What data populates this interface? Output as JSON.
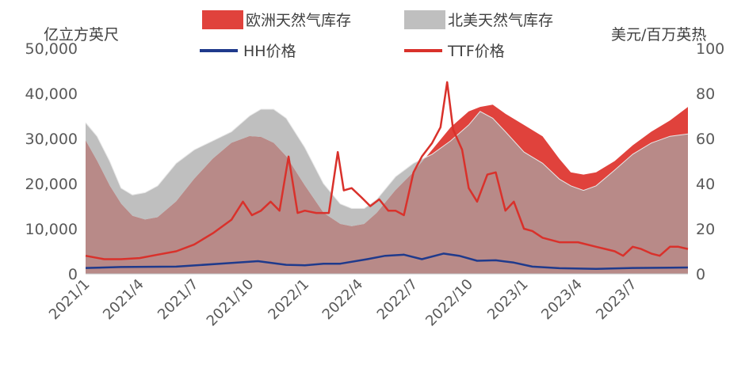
{
  "chart_data": {
    "type": "area",
    "y_left_label": "亿立方英尺",
    "y_right_label": "美元/百万英热",
    "y_left_ticks": [
      "0",
      "10,000",
      "20,000",
      "30,000",
      "40,000",
      "50,000"
    ],
    "y_right_ticks": [
      "0",
      "20",
      "40",
      "60",
      "80",
      "100"
    ],
    "ylim_left": [
      0,
      50000
    ],
    "ylim_right": [
      0,
      100
    ],
    "xlim": [
      "2021-01-01",
      "2023-10-01"
    ],
    "x_ticks": [
      "2021/1",
      "2021/4",
      "2021/7",
      "2021/10",
      "2022/1",
      "2022/4",
      "2022/7",
      "2022/10",
      "2023/1",
      "2023/4",
      "2023/7"
    ],
    "legend_position": "top",
    "grid": false,
    "colors": {
      "eu_storage": "#e0423c",
      "us_storage": "#bfbfbf",
      "overlap": "#b88a88",
      "hh": "#1f3a8c",
      "ttf": "#d9312b"
    },
    "series": [
      {
        "name": "欧洲天然气库存",
        "type": "area",
        "axis": "left",
        "x": [
          "2021-01-01",
          "2021-01-20",
          "2021-02-10",
          "2021-03-01",
          "2021-03-20",
          "2021-04-10",
          "2021-05-01",
          "2021-06-01",
          "2021-07-01",
          "2021-08-01",
          "2021-09-01",
          "2021-10-01",
          "2021-10-20",
          "2021-11-10",
          "2021-12-01",
          "2022-01-01",
          "2022-02-01",
          "2022-03-01",
          "2022-03-20",
          "2022-04-10",
          "2022-05-01",
          "2022-06-01",
          "2022-07-01",
          "2022-08-01",
          "2022-09-01",
          "2022-10-01",
          "2022-10-20",
          "2022-11-10",
          "2022-12-01",
          "2023-01-01",
          "2023-02-01",
          "2023-03-01",
          "2023-03-20",
          "2023-04-10",
          "2023-05-01",
          "2023-06-01",
          "2023-07-01",
          "2023-08-01",
          "2023-09-01",
          "2023-10-01"
        ],
        "values": [
          29500,
          25000,
          19500,
          15500,
          12800,
          12000,
          12500,
          16000,
          21000,
          25500,
          29000,
          30500,
          30300,
          29000,
          26000,
          19500,
          13500,
          11000,
          10500,
          11000,
          13500,
          18500,
          22500,
          27500,
          32500,
          36000,
          37000,
          37500,
          35500,
          33000,
          30500,
          25500,
          22500,
          22000,
          22500,
          25000,
          28500,
          31500,
          34000,
          37000
        ]
      },
      {
        "name": "北美天然气库存",
        "type": "area",
        "axis": "left",
        "x": [
          "2021-01-01",
          "2021-01-20",
          "2021-02-10",
          "2021-03-01",
          "2021-03-20",
          "2021-04-10",
          "2021-05-01",
          "2021-06-01",
          "2021-07-01",
          "2021-08-01",
          "2021-09-01",
          "2021-10-01",
          "2021-10-20",
          "2021-11-10",
          "2021-12-01",
          "2022-01-01",
          "2022-02-01",
          "2022-03-01",
          "2022-03-20",
          "2022-04-10",
          "2022-05-01",
          "2022-06-01",
          "2022-07-01",
          "2022-08-01",
          "2022-09-01",
          "2022-10-01",
          "2022-10-20",
          "2022-11-10",
          "2022-12-01",
          "2023-01-01",
          "2023-02-01",
          "2023-03-01",
          "2023-03-20",
          "2023-04-10",
          "2023-05-01",
          "2023-06-01",
          "2023-07-01",
          "2023-08-01",
          "2023-09-01",
          "2023-10-01"
        ],
        "values": [
          33500,
          30500,
          25000,
          19000,
          17500,
          18000,
          19500,
          24500,
          27500,
          29500,
          31500,
          35000,
          36500,
          36500,
          34500,
          28000,
          20000,
          15500,
          14500,
          14500,
          16500,
          21500,
          24500,
          26500,
          29500,
          33000,
          36000,
          34500,
          31500,
          27000,
          24500,
          21000,
          19500,
          18500,
          19500,
          23000,
          26500,
          29000,
          30500,
          31000
        ]
      },
      {
        "name": "HH价格",
        "type": "line",
        "axis": "right",
        "x": [
          "2021-01-01",
          "2021-03-01",
          "2021-06-01",
          "2021-09-01",
          "2021-10-15",
          "2021-12-01",
          "2022-01-01",
          "2022-02-01",
          "2022-03-01",
          "2022-04-15",
          "2022-05-15",
          "2022-06-15",
          "2022-07-15",
          "2022-08-20",
          "2022-09-15",
          "2022-10-15",
          "2022-11-15",
          "2022-12-15",
          "2023-01-15",
          "2023-03-01",
          "2023-05-01",
          "2023-07-01",
          "2023-09-01",
          "2023-10-01"
        ],
        "values": [
          2.6,
          3.0,
          3.2,
          4.8,
          5.6,
          4.0,
          3.8,
          4.5,
          4.5,
          6.5,
          8.0,
          8.5,
          6.5,
          9.0,
          8.0,
          5.8,
          6.0,
          5.0,
          3.2,
          2.5,
          2.2,
          2.6,
          2.7,
          2.8
        ]
      },
      {
        "name": "TTF价格",
        "type": "line",
        "axis": "right",
        "x": [
          "2021-01-01",
          "2021-02-01",
          "2021-03-01",
          "2021-04-01",
          "2021-05-01",
          "2021-06-01",
          "2021-07-01",
          "2021-08-01",
          "2021-09-01",
          "2021-09-20",
          "2021-10-05",
          "2021-10-20",
          "2021-11-05",
          "2021-11-20",
          "2021-12-05",
          "2021-12-20",
          "2022-01-01",
          "2022-01-20",
          "2022-02-10",
          "2022-02-25",
          "2022-03-07",
          "2022-03-20",
          "2022-04-05",
          "2022-04-20",
          "2022-05-05",
          "2022-05-20",
          "2022-06-01",
          "2022-06-15",
          "2022-07-01",
          "2022-07-15",
          "2022-08-01",
          "2022-08-15",
          "2022-08-26",
          "2022-09-05",
          "2022-09-20",
          "2022-10-01",
          "2022-10-15",
          "2022-11-01",
          "2022-11-15",
          "2022-12-01",
          "2022-12-15",
          "2023-01-01",
          "2023-01-15",
          "2023-02-01",
          "2023-03-01",
          "2023-04-01",
          "2023-05-01",
          "2023-06-01",
          "2023-06-15",
          "2023-07-01",
          "2023-07-15",
          "2023-08-01",
          "2023-08-15",
          "2023-09-01",
          "2023-09-15",
          "2023-10-01"
        ],
        "values": [
          8,
          6.5,
          6.5,
          7,
          8.5,
          10,
          13,
          18,
          24,
          32,
          26,
          28,
          32,
          28,
          52,
          27,
          28,
          27,
          27,
          54,
          37,
          38,
          34,
          30,
          33,
          28,
          28,
          26,
          45,
          52,
          58,
          65,
          85,
          64,
          55,
          38,
          32,
          44,
          45,
          28,
          32,
          20,
          19,
          16,
          14,
          14,
          12,
          10,
          8,
          12,
          11,
          9,
          8,
          12,
          12,
          11
        ]
      }
    ]
  }
}
